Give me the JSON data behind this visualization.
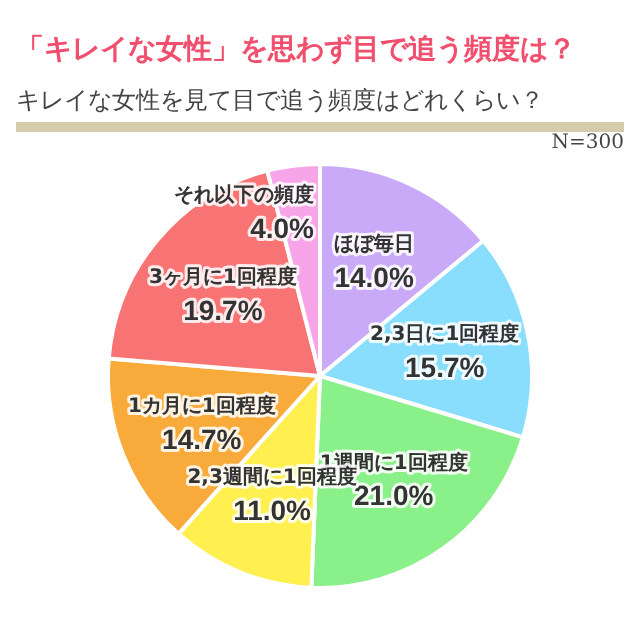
{
  "chart_data": {
    "type": "pie",
    "title": "「キレイな女性」を思わず目で追う頻度は？",
    "subtitle": "キレイな女性を見て目で追う頻度はどれくらい？",
    "annotations": [
      "N=300"
    ],
    "categories": [
      "ほぼ毎日",
      "2,3日に1回程度",
      "1週間に1回程度",
      "2,3週間に1回程度",
      "1カ月に1回程度",
      "3ヶ月に1回程度",
      "それ以下の頻度"
    ],
    "values": [
      14.0,
      15.7,
      21.0,
      11.0,
      14.7,
      19.7,
      4.0
    ],
    "value_labels": [
      "14.0%",
      "15.7%",
      "21.0%",
      "11.0%",
      "14.7%",
      "19.7%",
      "4.0%"
    ],
    "colors": [
      "#c8aaf8",
      "#88defc",
      "#8af08a",
      "#fff050",
      "#f8aa3a",
      "#f87474",
      "#f8a4e8"
    ],
    "legend": false
  }
}
